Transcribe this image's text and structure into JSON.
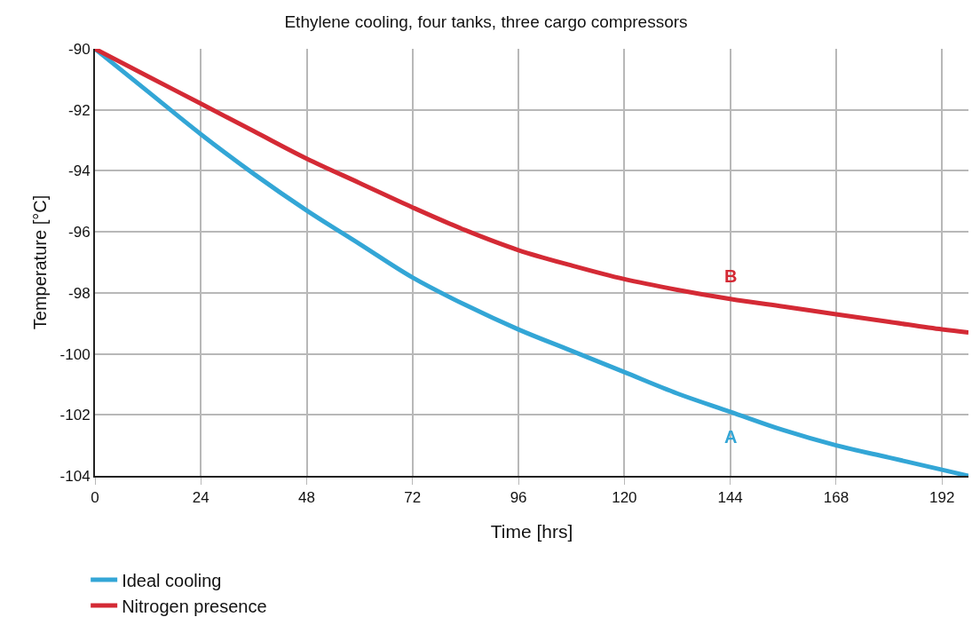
{
  "chart_data": {
    "type": "line",
    "title": "Ethylene cooling, four tanks, three cargo compressors",
    "xlabel": "Time [hrs]",
    "ylabel": "Temperature [°C]",
    "x": [
      0,
      12,
      24,
      36,
      48,
      60,
      72,
      84,
      96,
      108,
      120,
      132,
      144,
      156,
      168,
      180,
      192,
      198
    ],
    "series": [
      {
        "name": "Ideal cooling",
        "color": "#33a6d6",
        "values": [
          -90,
          -91.4,
          -92.8,
          -94.1,
          -95.3,
          -96.4,
          -97.5,
          -98.4,
          -99.2,
          -99.9,
          -100.6,
          -101.3,
          -101.9,
          -102.5,
          -103.0,
          -103.4,
          -103.8,
          -104
        ]
      },
      {
        "name": "Nitrogen presence",
        "color": "#d42a35",
        "values": [
          -90,
          -90.9,
          -91.8,
          -92.7,
          -93.6,
          -94.4,
          -95.2,
          -95.95,
          -96.6,
          -97.1,
          -97.55,
          -97.9,
          -98.2,
          -98.45,
          -98.7,
          -98.95,
          -99.2,
          -99.3
        ]
      }
    ],
    "annotations": [
      "A",
      "B"
    ],
    "xlim": [
      0,
      198
    ],
    "xticks": [
      0,
      24,
      48,
      72,
      96,
      120,
      144,
      168,
      192
    ],
    "ylim": [
      -104,
      -90
    ],
    "yticks": [
      -104,
      -102,
      -100,
      -98,
      -96,
      -94,
      -92,
      -90
    ],
    "grid": true,
    "legend": "bottom left",
    "marker": "none",
    "line_style": "solid"
  }
}
